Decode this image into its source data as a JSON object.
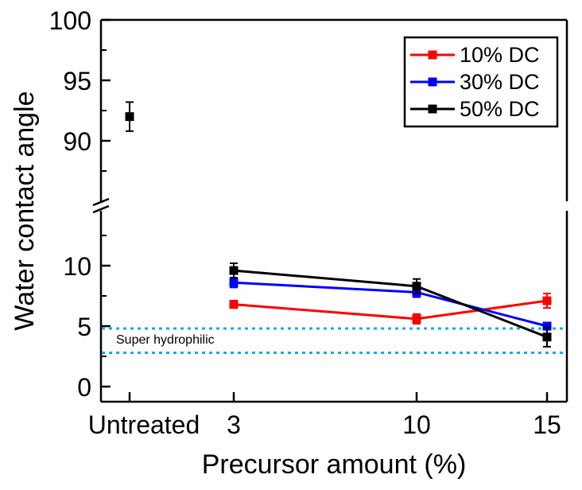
{
  "chart_data": {
    "type": "line",
    "title": "",
    "xlabel": "Precursor amount (%)",
    "ylabel": "Water contact angle",
    "x_categories": [
      "Untreated",
      "3",
      "10",
      "15"
    ],
    "y_ticks_upper": [
      "90",
      "95",
      "100"
    ],
    "y_ticks_lower": [
      "0",
      "5",
      "10"
    ],
    "y_break": true,
    "untreated": {
      "value": 92.0,
      "error": 1.2,
      "color": "#000000"
    },
    "series": [
      {
        "name": "10% DC",
        "color": "#ff0000",
        "x": [
          3,
          10,
          15
        ],
        "y": [
          6.8,
          5.6,
          7.1
        ],
        "error": [
          0.3,
          0.4,
          0.6
        ]
      },
      {
        "name": "30% DC",
        "color": "#0000ff",
        "x": [
          3,
          10,
          15
        ],
        "y": [
          8.6,
          7.8,
          5.0
        ],
        "error": [
          0.4,
          0.4,
          0.3
        ]
      },
      {
        "name": "50% DC",
        "color": "#000000",
        "x": [
          3,
          10,
          15
        ],
        "y": [
          9.6,
          8.3,
          4.1
        ],
        "error": [
          0.6,
          0.6,
          0.8
        ]
      }
    ],
    "reference_lines": {
      "values": [
        4.8,
        2.8
      ],
      "color": "#1ea7e8",
      "label": "Super hydrophilic"
    },
    "legend_position": "top-right"
  }
}
